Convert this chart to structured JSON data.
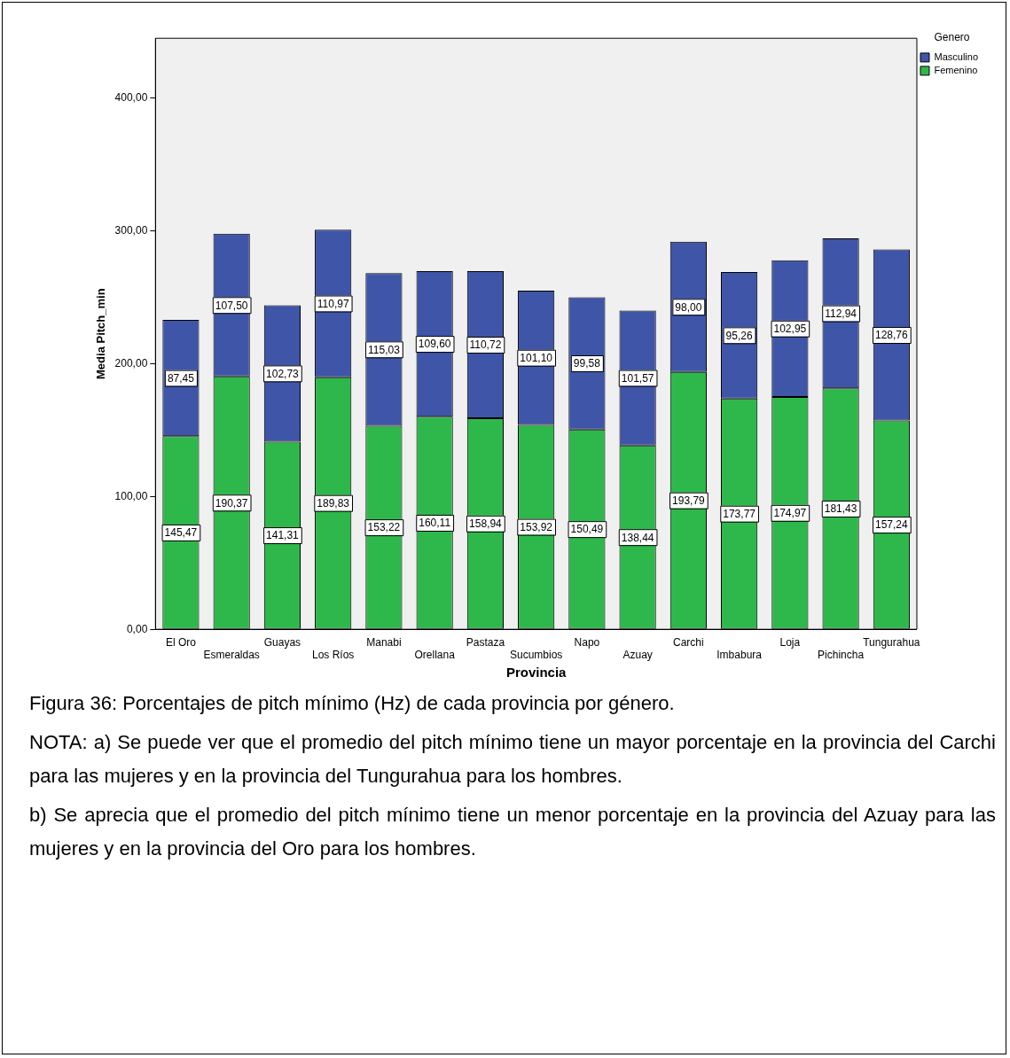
{
  "chart_data": {
    "type": "bar",
    "stacked": true,
    "categories": [
      "El Oro",
      "Esmeraldas",
      "Guayas",
      "Los Ríos",
      "Manabi",
      "Orellana",
      "Pastaza",
      "Sucumbios",
      "Napo",
      "Azuay",
      "Carchi",
      "Imbabura",
      "Loja",
      "Pichincha",
      "Tungurahua"
    ],
    "series": [
      {
        "name": "Femenino",
        "color": "#2eb84b",
        "values": [
          145.47,
          190.37,
          141.31,
          189.83,
          153.22,
          160.11,
          158.94,
          153.92,
          150.49,
          138.44,
          193.79,
          173.77,
          174.97,
          181.43,
          157.24
        ],
        "value_labels": [
          "145,47",
          "190,37",
          "141,31",
          "189,83",
          "153,22",
          "160,11",
          "158,94",
          "153,92",
          "150,49",
          "138,44",
          "193,79",
          "173,77",
          "174,97",
          "181,43",
          "157,24"
        ]
      },
      {
        "name": "Masculino",
        "color": "#3f55a8",
        "values": [
          87.45,
          107.5,
          102.73,
          110.97,
          115.03,
          109.6,
          110.72,
          101.1,
          99.58,
          101.57,
          98.0,
          95.26,
          102.95,
          112.94,
          128.76
        ],
        "value_labels": [
          "87,45",
          "107,50",
          "102,73",
          "110,97",
          "115,03",
          "109,60",
          "110,72",
          "101,10",
          "99,58",
          "101,57",
          "98,00",
          "95,26",
          "102,95",
          "112,94",
          "128,76"
        ]
      }
    ],
    "xlabel": "Provincia",
    "ylabel": "Media Pitch_min",
    "legend_title": "Genero",
    "legend": "top right",
    "ylim": [
      0,
      445
    ],
    "yticks": [
      {
        "value": 0,
        "label": "0,00"
      },
      {
        "value": 100,
        "label": "100,00"
      },
      {
        "value": 200,
        "label": "200,00"
      },
      {
        "value": 300,
        "label": "300,00"
      },
      {
        "value": 400,
        "label": "400,00"
      }
    ],
    "annotations": [
      "Figura 36: Porcentajes de pitch mínimo (Hz) de cada provincia por género.",
      "NOTA: a) Se puede ver que el promedio del pitch mínimo tiene un mayor porcentaje en la provincia del Carchi para las mujeres y en la provincia del Tungurahua para los hombres.",
      "b) Se aprecia que el promedio del pitch mínimo tiene un menor porcentaje en la provincia del Azuay para las mujeres y en la provincia del Oro para los hombres."
    ]
  }
}
